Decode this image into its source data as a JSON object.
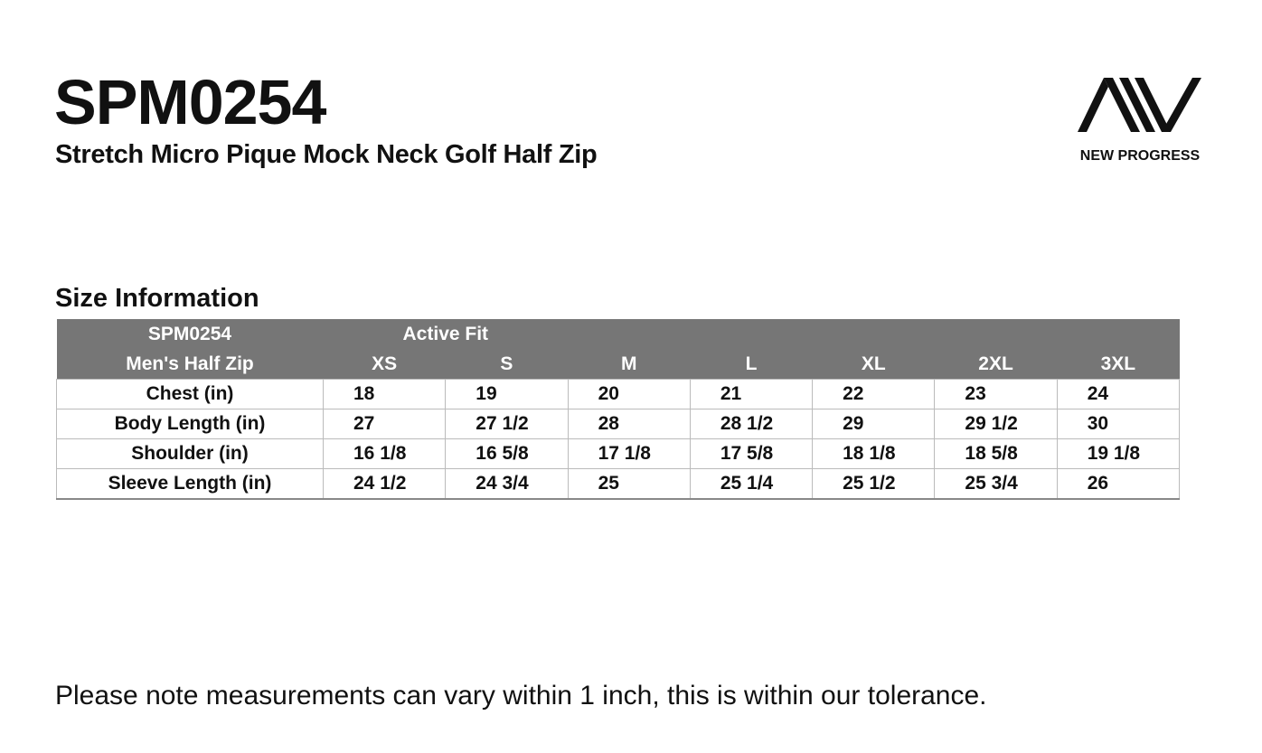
{
  "header": {
    "title": "SPM0254",
    "subtitle": "Stretch Micro Pique Mock Neck Golf Half Zip"
  },
  "logo": {
    "brand": "NEW PROGRESS"
  },
  "section_title": "Size Information",
  "table": {
    "code": "SPM0254",
    "fit": "Active Fit",
    "product": "Men's Half Zip",
    "sizes": [
      "XS",
      "S",
      "M",
      "L",
      "XL",
      "2XL",
      "3XL"
    ],
    "rows": [
      {
        "label": "Chest (in)",
        "values": [
          "18",
          "19",
          "20",
          "21",
          "22",
          "23",
          "24"
        ]
      },
      {
        "label": "Body Length (in)",
        "values": [
          "27",
          "27 1/2",
          "28",
          "28 1/2",
          "29",
          "29 1/2",
          "30"
        ]
      },
      {
        "label": "Shoulder (in)",
        "values": [
          "16 1/8",
          "16 5/8",
          "17 1/8",
          "17 5/8",
          "18 1/8",
          "18 5/8",
          "19 1/8"
        ]
      },
      {
        "label": "Sleeve Length (in)",
        "values": [
          "24 1/2",
          "24 3/4",
          "25",
          "25 1/4",
          "25 1/2",
          "25 3/4",
          "26"
        ]
      }
    ]
  },
  "note": "Please note measurements can vary within 1 inch, this is within our tolerance."
}
